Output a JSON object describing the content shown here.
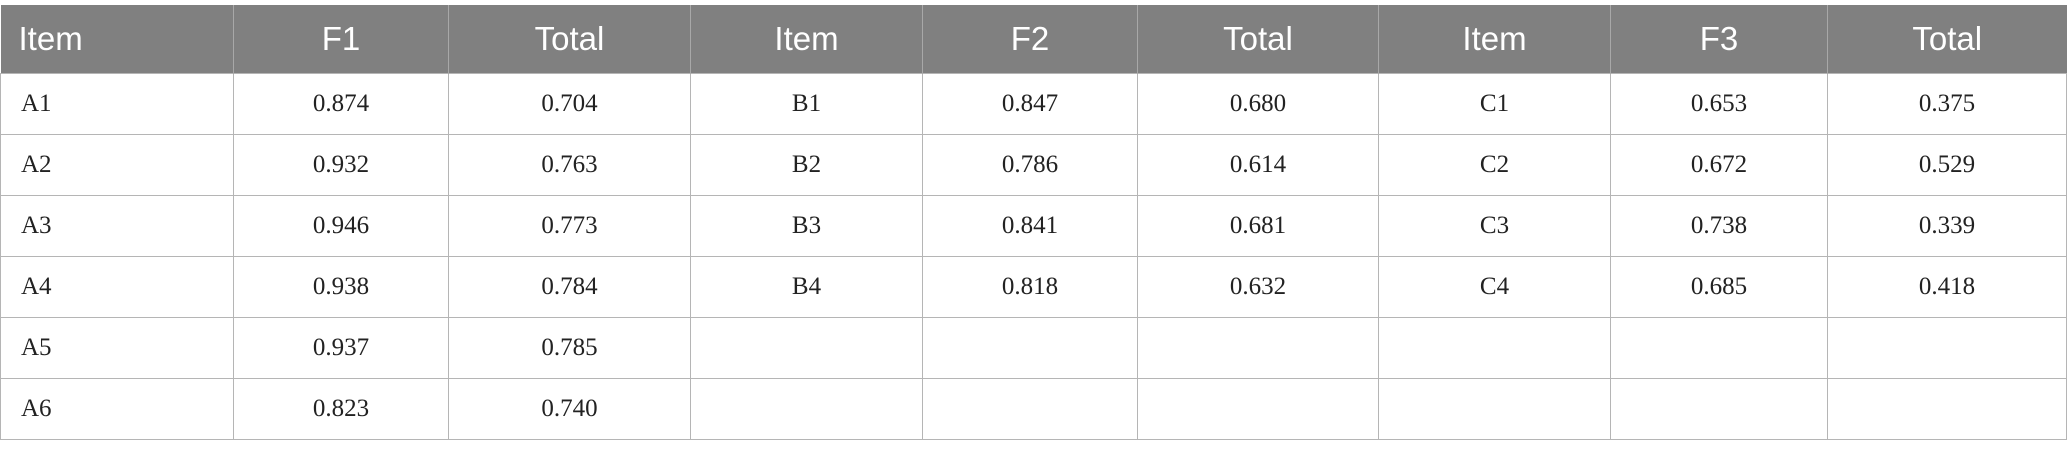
{
  "table": {
    "header": [
      "Item",
      "F1",
      "Total",
      "Item",
      "F2",
      "Total",
      "Item",
      "F3",
      "Total"
    ],
    "rows": [
      [
        "A1",
        "0.874",
        "0.704",
        "B1",
        "0.847",
        "0.680",
        "C1",
        "0.653",
        "0.375"
      ],
      [
        "A2",
        "0.932",
        "0.763",
        "B2",
        "0.786",
        "0.614",
        "C2",
        "0.672",
        "0.529"
      ],
      [
        "A3",
        "0.946",
        "0.773",
        "B3",
        "0.841",
        "0.681",
        "C3",
        "0.738",
        "0.339"
      ],
      [
        "A4",
        "0.938",
        "0.784",
        "B4",
        "0.818",
        "0.632",
        "C4",
        "0.685",
        "0.418"
      ],
      [
        "A5",
        "0.937",
        "0.785",
        null,
        null,
        null,
        null,
        null,
        null
      ],
      [
        "A6",
        "0.823",
        "0.740",
        null,
        null,
        null,
        null,
        null,
        null
      ]
    ]
  }
}
